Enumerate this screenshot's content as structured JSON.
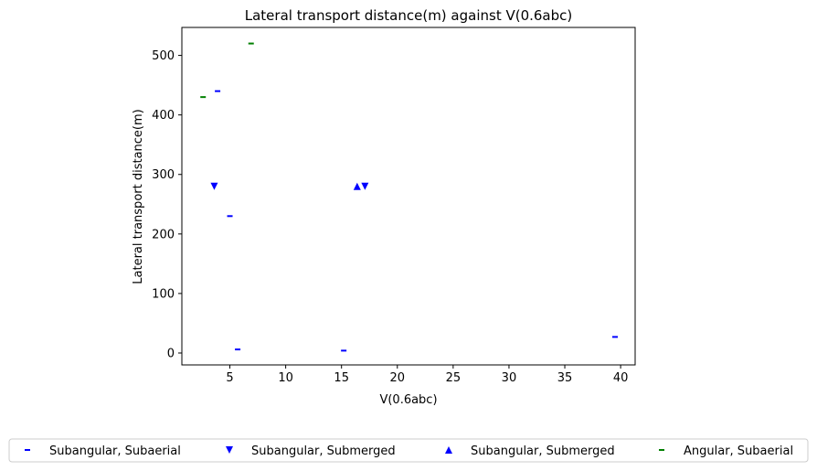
{
  "chart_data": {
    "type": "scatter",
    "title": "Lateral transport distance(m) against V(0.6abc)",
    "xlabel": "V(0.6abc)",
    "ylabel": "Lateral transport distance(m)",
    "xlim": [
      0.7,
      41.3
    ],
    "ylim": [
      -20,
      547
    ],
    "xticks": [
      5,
      10,
      15,
      20,
      25,
      30,
      35,
      40
    ],
    "yticks": [
      0,
      100,
      200,
      300,
      400,
      500
    ],
    "grid": false,
    "legend_position": "bottom",
    "series": [
      {
        "name": "Subangular, Subaerial",
        "marker": "dash",
        "color": "#0000ff",
        "points": [
          [
            3.9,
            440
          ],
          [
            5.0,
            230
          ],
          [
            5.7,
            6
          ],
          [
            15.2,
            4
          ],
          [
            39.5,
            27
          ]
        ]
      },
      {
        "name": "Subangular, Submerged",
        "marker": "triangle-down",
        "color": "#0000ff",
        "points": [
          [
            3.6,
            280
          ],
          [
            17.1,
            280
          ]
        ]
      },
      {
        "name": "Subangular, Submerged",
        "marker": "triangle-up",
        "color": "#0000ff",
        "points": [
          [
            16.4,
            280
          ]
        ]
      },
      {
        "name": "Angular, Subaerial",
        "marker": "dash",
        "color": "#008000",
        "points": [
          [
            2.6,
            430
          ],
          [
            6.9,
            520
          ]
        ]
      }
    ]
  }
}
